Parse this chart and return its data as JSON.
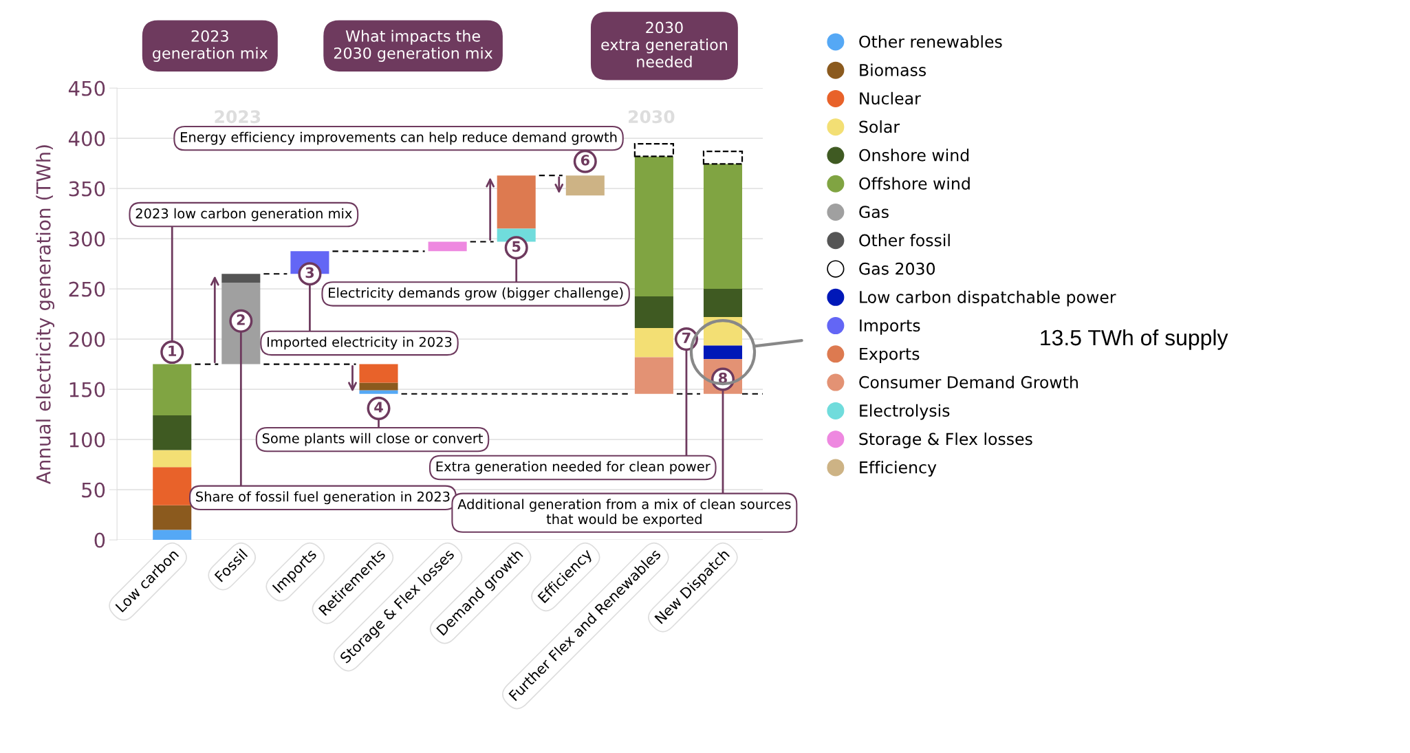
{
  "chart_data": {
    "type": "bar",
    "categories": [
      "Low carbon",
      "Fossil",
      "Imports",
      "Retirements",
      "Storage & Flex losses",
      "Demand growth",
      "Efficiency",
      "Further Flex and Renewables",
      "New Dispatch"
    ],
    "series": [
      {
        "name": "Other renewables",
        "color": "#55a8f5",
        "values": [
          10,
          null,
          null,
          3.5,
          null,
          null,
          null,
          null,
          null
        ],
        "base": [
          0,
          null,
          null,
          145.5,
          null,
          null,
          null,
          null,
          null
        ]
      },
      {
        "name": "Biomass",
        "color": "#8b5a1e",
        "values": [
          24.5,
          null,
          null,
          7.5,
          null,
          null,
          null,
          null,
          null
        ],
        "base": [
          10,
          null,
          null,
          149,
          null,
          null,
          null,
          null,
          null
        ]
      },
      {
        "name": "Nuclear",
        "color": "#e8622a",
        "values": [
          38,
          null,
          null,
          18.5,
          null,
          null,
          null,
          null,
          null
        ],
        "base": [
          34.5,
          null,
          null,
          156.5,
          null,
          null,
          null,
          null,
          null
        ]
      },
      {
        "name": "Solar",
        "color": "#f3df74",
        "values": [
          17,
          null,
          null,
          null,
          null,
          null,
          null,
          29,
          28.5
        ],
        "base": [
          72.5,
          null,
          null,
          null,
          null,
          null,
          null,
          182,
          193.5
        ]
      },
      {
        "name": "Onshore wind",
        "color": "#3f5a22",
        "values": [
          34.5,
          null,
          null,
          null,
          null,
          null,
          null,
          31.5,
          28
        ],
        "base": [
          89.5,
          null,
          null,
          null,
          null,
          null,
          null,
          211,
          222
        ]
      },
      {
        "name": "Offshore wind",
        "color": "#80a442",
        "values": [
          51,
          null,
          null,
          null,
          null,
          null,
          null,
          139.5,
          124.5
        ],
        "base": [
          124,
          null,
          null,
          null,
          null,
          null,
          null,
          242.5,
          250
        ]
      },
      {
        "name": "Gas",
        "color": "#a0a0a0",
        "values": [
          null,
          81,
          null,
          null,
          null,
          null,
          null,
          null,
          null
        ],
        "base": [
          null,
          175,
          null,
          null,
          null,
          null,
          null,
          null,
          null
        ]
      },
      {
        "name": "Other fossil",
        "color": "#555555",
        "values": [
          null,
          9,
          null,
          null,
          null,
          null,
          null,
          null,
          null
        ],
        "base": [
          null,
          256,
          null,
          null,
          null,
          null,
          null,
          null,
          null
        ]
      },
      {
        "name": "Gas 2030",
        "color": "#000000",
        "line_style": "dashed",
        "values": [
          null,
          null,
          null,
          null,
          null,
          null,
          null,
          12.5,
          12.5
        ],
        "base": [
          null,
          null,
          null,
          null,
          null,
          null,
          null,
          382,
          374.5
        ]
      },
      {
        "name": "Low carbon dispatchable power",
        "color": "#0018b8",
        "values": [
          null,
          null,
          null,
          null,
          null,
          null,
          null,
          null,
          13.5
        ],
        "base": [
          null,
          null,
          null,
          null,
          null,
          null,
          null,
          null,
          180
        ]
      },
      {
        "name": "Imports",
        "color": "#6366f5",
        "values": [
          null,
          null,
          22.5,
          null,
          null,
          null,
          null,
          null,
          null
        ],
        "base": [
          null,
          null,
          265,
          null,
          null,
          null,
          null,
          null,
          null
        ]
      },
      {
        "name": "Exports",
        "color": "#dd7a50",
        "values": [
          null,
          null,
          null,
          null,
          null,
          53,
          null,
          null,
          null
        ],
        "base": [
          null,
          null,
          null,
          null,
          null,
          310,
          null,
          null,
          null
        ]
      },
      {
        "name": "Consumer Demand Growth",
        "color": "#e39274",
        "values": [
          null,
          null,
          null,
          null,
          null,
          null,
          null,
          36.5,
          34.5
        ],
        "base": [
          null,
          null,
          null,
          null,
          null,
          null,
          null,
          145.5,
          145.5
        ]
      },
      {
        "name": "Electrolysis",
        "color": "#70dcdc",
        "values": [
          null,
          null,
          null,
          null,
          null,
          13,
          null,
          null,
          null
        ],
        "base": [
          null,
          null,
          null,
          null,
          null,
          297,
          null,
          null,
          null
        ]
      },
      {
        "name": "Storage & Flex losses",
        "color": "#ee88e0",
        "values": [
          null,
          null,
          null,
          null,
          9.5,
          null,
          null,
          null,
          null
        ],
        "base": [
          null,
          null,
          null,
          null,
          287.5,
          null,
          null,
          null,
          null
        ]
      },
      {
        "name": "Efficiency",
        "color": "#cdb385",
        "values": [
          null,
          null,
          null,
          null,
          null,
          null,
          20,
          null,
          null
        ],
        "base": [
          null,
          null,
          null,
          null,
          null,
          null,
          343,
          null,
          null
        ]
      }
    ],
    "ylabel": "Annual electricity generation (TWh)",
    "ylim": [
      0,
      450
    ],
    "yticks": [
      0,
      50,
      100,
      150,
      200,
      250,
      300,
      350,
      400,
      450
    ],
    "grid": "y",
    "legend": "right",
    "annotations": [
      "1",
      "2",
      "3",
      "4",
      "5",
      "6",
      "7",
      "8",
      "2023 low carbon generation mix",
      "Share of fossil fuel generation in 2023",
      {
        "text": "Imported electricity in 2023",
        "x": "Imports",
        "y": 265
      },
      "Some plants will close or convert",
      "Electricity demands grow (bigger challenge)",
      "Energy efficiency improvements can help reduce demand growth",
      "Extra generation needed for clean power",
      "Additional generation from a mix of clean sources\nthat would be exported",
      "2023\ngeneration mix",
      "What impacts the\n2030 generation mix",
      "2030\nextra generation\nneeded",
      "2023",
      "2030",
      "13.5 TWh of supply"
    ]
  }
}
